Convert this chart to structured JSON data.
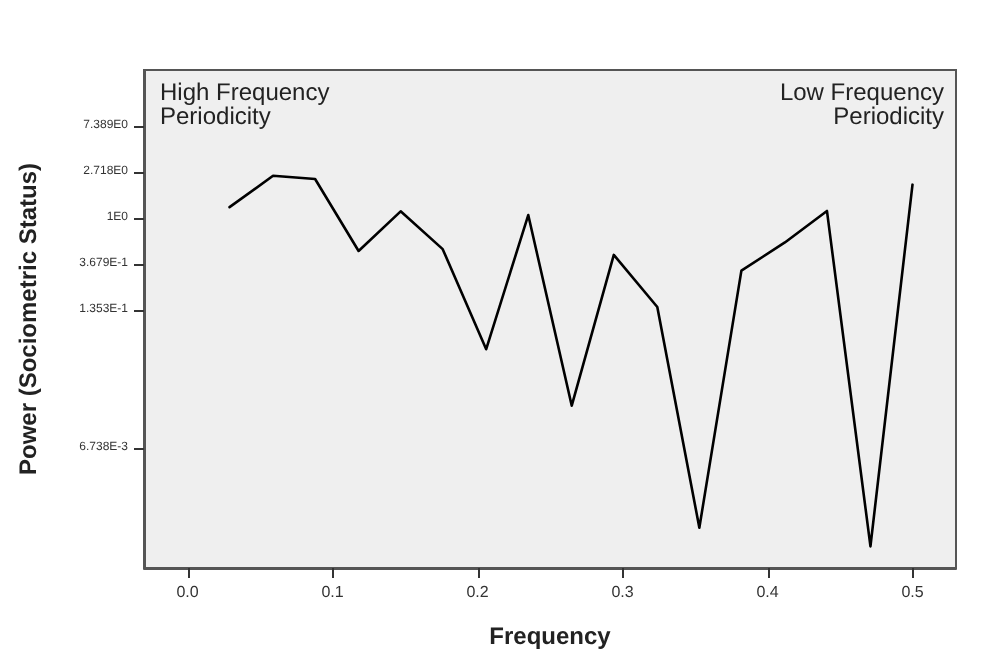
{
  "chart_data": {
    "type": "line",
    "xlabel": "Frequency",
    "ylabel": "Power (Sociometric Status)",
    "annotations": [
      "High Frequency\nPeriodicity",
      "Low Frequency\nPeriodicity"
    ],
    "x": [
      0.029,
      0.059,
      0.088,
      0.118,
      0.147,
      0.176,
      0.206,
      0.235,
      0.265,
      0.294,
      0.324,
      0.353,
      0.382,
      0.412,
      0.441,
      0.471,
      0.5
    ],
    "series": [
      {
        "color": "#000000",
        "values": [
          1.27,
          2.51,
          2.34,
          0.49,
          1.16,
          0.51,
          0.058,
          1.07,
          0.017,
          0.45,
          0.145,
          0.0012,
          0.32,
          0.59,
          1.17,
          0.0008,
          2.07
        ]
      }
    ],
    "log": "y",
    "xlim": [
      -0.03,
      0.53
    ],
    "xticks": [
      {
        "value": 0,
        "label": "0.0"
      },
      0.1,
      0.2,
      0.3,
      0.4,
      0.5
    ],
    "ylim": [
      0.0005,
      25
    ],
    "yticks": [
      {
        "value": 0.006738,
        "label": "6.738E-3"
      },
      {
        "value": 0.1353,
        "label": "1.353E-1"
      },
      {
        "value": 0.3679,
        "label": "3.679E-1"
      },
      {
        "value": 1,
        "label": "1E0"
      },
      {
        "value": 2.718,
        "label": "2.718E0"
      },
      {
        "value": 7.389,
        "label": "7.389E0"
      }
    ],
    "grid": false,
    "marker": "none",
    "line_style": "solid"
  }
}
